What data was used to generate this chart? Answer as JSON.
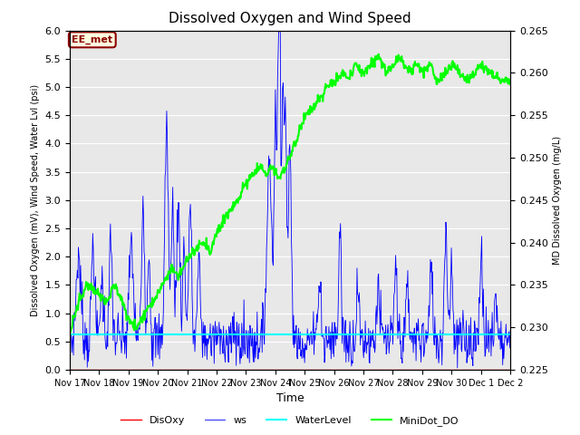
{
  "title": "Dissolved Oxygen and Wind Speed",
  "xlabel": "Time",
  "ylabel_left": "Dissolved Oxygen (mV), Wind Speed, Water Lvl (psi)",
  "ylabel_right": "MD Dissolved Oxygen (mg/L)",
  "annotation": "EE_met",
  "ylim_left": [
    0.0,
    6.0
  ],
  "ylim_right": [
    0.225,
    0.265
  ],
  "legend_labels": [
    "DisOxy",
    "ws",
    "WaterLevel",
    "MiniDot_DO"
  ],
  "colors": {
    "DisOxy": "red",
    "ws": "blue",
    "WaterLevel": "cyan",
    "MiniDot_DO": "lime"
  },
  "background_color": "#e8e8e8",
  "xtick_labels": [
    "Nov 17",
    "Nov 18",
    "Nov 19",
    "Nov 20",
    "Nov 21",
    "Nov 22",
    "Nov 23",
    "Nov 24",
    "Nov 25",
    "Nov 26",
    "Nov 27",
    "Nov 28",
    "Nov 29",
    "Nov 30",
    "Dec 1",
    "Dec 2"
  ],
  "num_points": 800,
  "water_level": 0.62
}
